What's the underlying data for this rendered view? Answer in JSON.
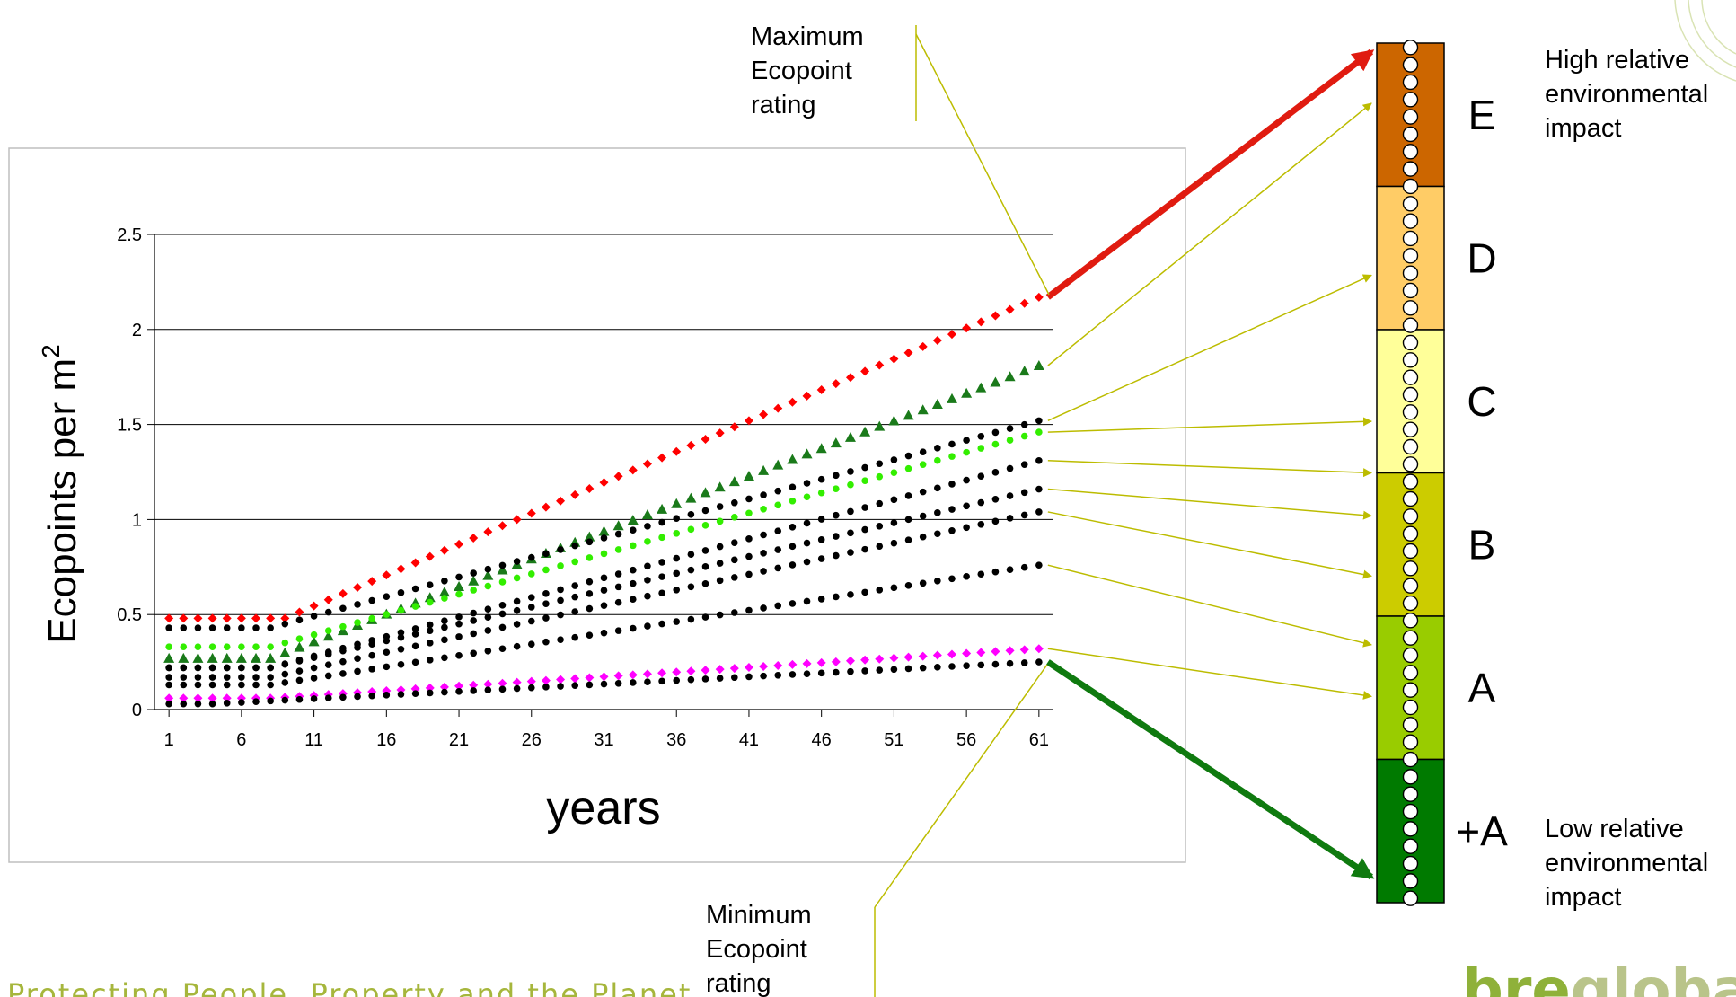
{
  "colors": {
    "background": "#ffffff",
    "pointer": "#bcbc00",
    "max_arrow": "#e01b10",
    "min_arrow": "#0f7a0f",
    "footer": "#a6b63c",
    "logo": "#8fb13a"
  },
  "chart_data": {
    "type": "scatter",
    "title": "",
    "xlabel": "years",
    "ylabel_prefix": "Ecopoints per m",
    "ylabel_sup": "2",
    "xlim": [
      0,
      62
    ],
    "ylim": [
      0,
      2.5
    ],
    "xtick_labels": [
      "1",
      "6",
      "11",
      "16",
      "21",
      "26",
      "31",
      "36",
      "41",
      "46",
      "51",
      "56",
      "61"
    ],
    "ytick_labels": [
      "0",
      "0.5",
      "1",
      "1.5",
      "2",
      "2.5"
    ],
    "grid": true,
    "legend": "none",
    "series": [
      {
        "color": "#ff0000",
        "marker": "diamond",
        "start": 0.48,
        "flat_until": 9,
        "end": 2.17
      },
      {
        "color": "#1a7a1a",
        "marker": "triangle",
        "start": 0.27,
        "flat_until": 8,
        "end": 1.81
      },
      {
        "color": "#000000",
        "marker": "dot",
        "start": 0.43,
        "flat_until": 8,
        "end": 1.52
      },
      {
        "color": "#33ee00",
        "marker": "dot",
        "start": 0.33,
        "flat_until": 8,
        "end": 1.46
      },
      {
        "color": "#000000",
        "marker": "dot",
        "start": 0.22,
        "flat_until": 8,
        "end": 1.31
      },
      {
        "color": "#000000",
        "marker": "dot",
        "start": 0.22,
        "flat_until": 8,
        "end": 1.16
      },
      {
        "color": "#000000",
        "marker": "dot",
        "start": 0.17,
        "flat_until": 8,
        "end": 1.04
      },
      {
        "color": "#000000",
        "marker": "dot",
        "start": 0.13,
        "flat_until": 8,
        "end": 0.76
      },
      {
        "color": "#ff00ff",
        "marker": "diamond",
        "start": 0.06,
        "flat_until": 8,
        "end": 0.32
      },
      {
        "color": "#000000",
        "marker": "dot",
        "start": 0.03,
        "flat_until": 4,
        "end": 0.25
      }
    ]
  },
  "annotations": {
    "max_label": [
      "Maximum",
      "Ecopoint",
      "rating"
    ],
    "min_label": [
      "Minimum",
      "Ecopoint",
      "rating"
    ],
    "high_impact": [
      "High relative",
      "environmental",
      "impact"
    ],
    "low_impact": [
      "Low relative",
      "environmental",
      "impact"
    ]
  },
  "rating_scale": {
    "bands": [
      {
        "label": "E",
        "color": "#cc6600"
      },
      {
        "label": "D",
        "color": "#ffcc66"
      },
      {
        "label": "C",
        "color": "#ffff99"
      },
      {
        "label": "B",
        "color": "#cccc00"
      },
      {
        "label": "A",
        "color": "#99cc00"
      },
      {
        "label": "+A",
        "color": "#007a00"
      }
    ],
    "series_band_levels": [
      0.03,
      0.24,
      0.3,
      0.38,
      0.45,
      0.5,
      0.56,
      0.73,
      0.93,
      0.99
    ]
  },
  "footer": {
    "tagline": "Protecting People, Property and the Planet",
    "logo_part1": "bre",
    "logo_part2": "global"
  }
}
